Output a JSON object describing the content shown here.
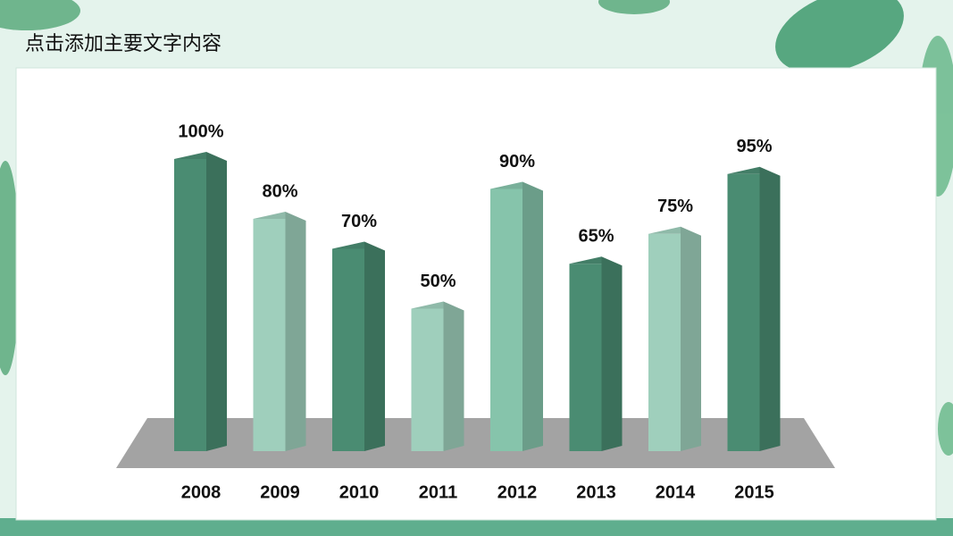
{
  "chart_data": {
    "type": "bar3d",
    "title": "点击添加主要文字内容",
    "categories": [
      "2008",
      "2009",
      "2010",
      "2011",
      "2012",
      "2013",
      "2014",
      "2015"
    ],
    "values": [
      100,
      80,
      70,
      50,
      90,
      65,
      75,
      95
    ],
    "value_labels": [
      "100%",
      "80%",
      "70%",
      "50%",
      "90%",
      "65%",
      "75%",
      "95%"
    ],
    "colors": [
      "#4a8c72",
      "#9fcfbc",
      "#4a8c72",
      "#9fcfbc",
      "#86c4ab",
      "#4a8c72",
      "#9fcfbc",
      "#4a8c72"
    ]
  }
}
